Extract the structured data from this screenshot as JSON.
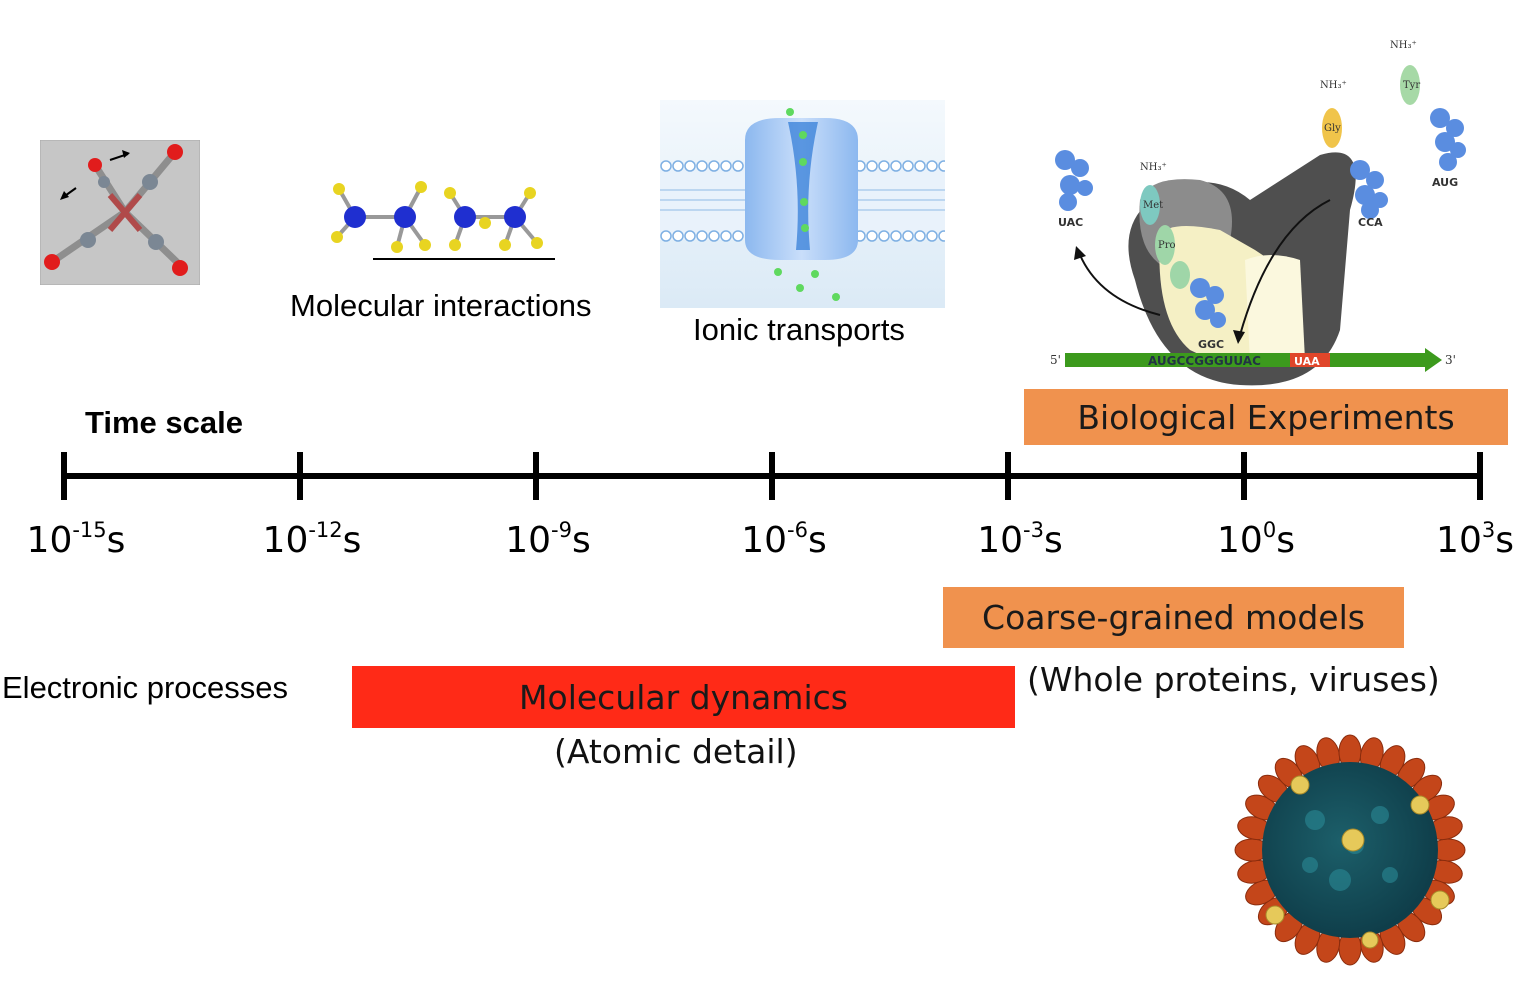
{
  "title": "Time scale",
  "axis": {
    "ticks": [
      {
        "base": "10",
        "exp": "-15",
        "unit": "s"
      },
      {
        "base": "10",
        "exp": "-12",
        "unit": "s"
      },
      {
        "base": "10",
        "exp": "-9",
        "unit": "s"
      },
      {
        "base": "10",
        "exp": "-6",
        "unit": "s"
      },
      {
        "base": "10",
        "exp": "-3",
        "unit": "s"
      },
      {
        "base": "10",
        "exp": "0",
        "unit": "s"
      },
      {
        "base": "10",
        "exp": "3",
        "unit": "s"
      }
    ]
  },
  "illustrations": {
    "electronic": "Electronic processes",
    "molecular_interactions": "Molecular interactions",
    "ionic_transports": "Ionic transports",
    "ribosome": {
      "nh3": "NH₃⁺",
      "anticodons": [
        "UAC",
        "CCA",
        "AUG",
        "GGC"
      ],
      "amino_acids": [
        "Met",
        "Pro",
        "Gly",
        "Tyr"
      ],
      "mrna_5": "5'",
      "mrna_3": "3'",
      "mrna_seq": "AUGCCGGGUUAC",
      "stop": "UAA"
    }
  },
  "bars": {
    "biological": {
      "label": "Biological Experiments",
      "color": "#f0924e"
    },
    "coarse": {
      "label": "Coarse-grained models",
      "color": "#f0924e",
      "note": "(Whole proteins, viruses)"
    },
    "md": {
      "label": "Molecular dynamics",
      "color": "#ff2a17",
      "note": "(Atomic detail)"
    }
  }
}
